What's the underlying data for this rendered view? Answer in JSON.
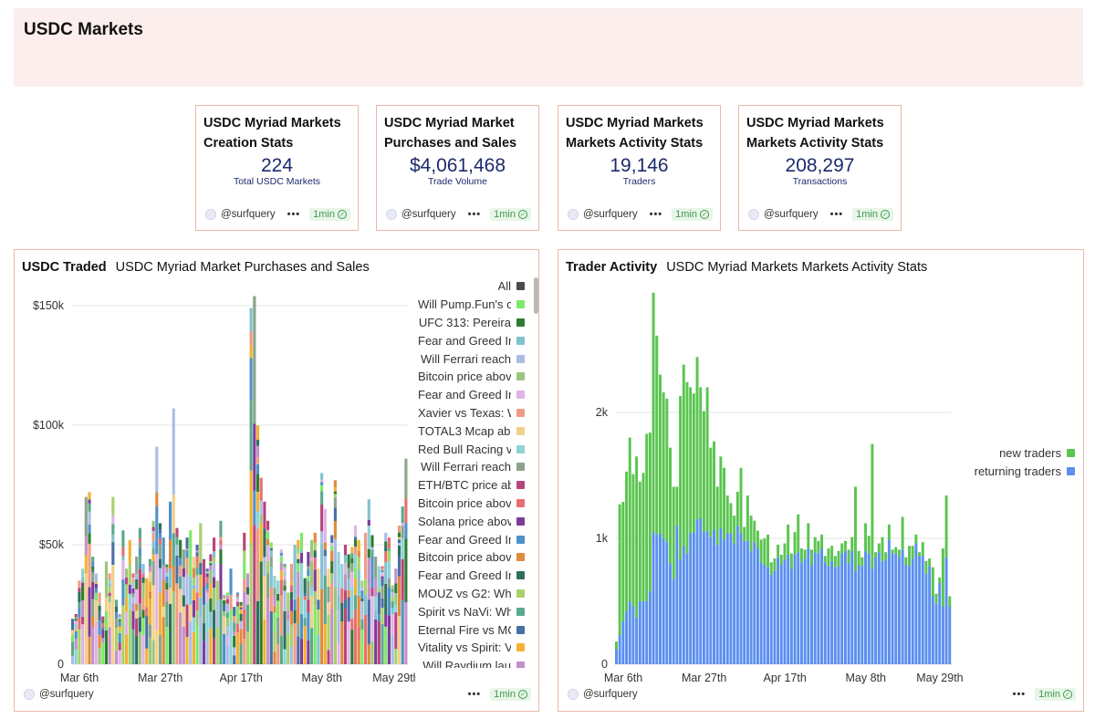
{
  "page": {
    "title": "USDC Markets"
  },
  "stat_cards": [
    {
      "title": "USDC Myriad Markets Creation Stats",
      "value": "224",
      "label": "Total USDC Markets",
      "author": "@surfquery",
      "refresh": "1min"
    },
    {
      "title": "USDC Myriad Market Purchases and Sales",
      "value": "$4,061,468",
      "label": "Trade Volume",
      "author": "@surfquery",
      "refresh": "1min"
    },
    {
      "title": "USDC Myriad Markets Markets Activity Stats",
      "value": "19,146",
      "label": "Traders",
      "author": "@surfquery",
      "refresh": "1min"
    },
    {
      "title": "USDC Myriad Markets Markets Activity Stats",
      "value": "208,297",
      "label": "Transactions",
      "author": "@surfquery",
      "refresh": "1min"
    }
  ],
  "panels": {
    "traded": {
      "name": "USDC Traded",
      "subtitle": "USDC Myriad Market Purchases and Sales",
      "author": "@surfquery",
      "refresh": "1min"
    },
    "traders": {
      "name": "Trader Activity",
      "subtitle": "USDC Myriad Markets Markets Activity Stats",
      "author": "@surfquery",
      "refresh": "1min"
    }
  },
  "colors": {
    "accent_border": "#e9b8a8",
    "header_bg": "#fbeeed",
    "stat_value": "#1d2a6e",
    "new_traders": "#5ac54f",
    "returning_traders": "#5b8ff0",
    "badge_green": "#3f9a4a"
  },
  "icons": {
    "avatar": "avatar-icon",
    "more": "more-dots-icon",
    "check": "check-circle-icon"
  },
  "chart_data": [
    {
      "type": "bar",
      "stacked": true,
      "title": "USDC Traded",
      "subtitle": "USDC Myriad Market Purchases and Sales",
      "xlabel": "",
      "ylabel": "",
      "x_ticks": [
        "Mar 6th",
        "Mar 27th",
        "Apr 17th",
        "May 8th",
        "May 29th"
      ],
      "y_ticks": [
        "0",
        "$50k",
        "$100k",
        "$150k"
      ],
      "ylim": [
        0,
        155000
      ],
      "legend": [
        {
          "name": "All",
          "color": "#4a4a4a"
        },
        {
          "name": "Will Pump.Fun's c",
          "color": "#7ee86a"
        },
        {
          "name": "UFC 313: Pereira",
          "color": "#2e7d32"
        },
        {
          "name": "Fear and Greed In",
          "color": "#80c2cf"
        },
        {
          "name": "Will Ferrari reach",
          "color": "#a9bde6"
        },
        {
          "name": "Bitcoin price abov",
          "color": "#9bc67d"
        },
        {
          "name": "Fear and Greed In",
          "color": "#e1b3e6"
        },
        {
          "name": "Xavier vs Texas: W",
          "color": "#f09c85"
        },
        {
          "name": "TOTAL3 Mcap abo",
          "color": "#f2d08a"
        },
        {
          "name": "Red Bull Racing v",
          "color": "#8ed3d6"
        },
        {
          "name": "Will Ferrari reach",
          "color": "#8aa58a"
        },
        {
          "name": "ETH/BTC price ab",
          "color": "#b8457a"
        },
        {
          "name": "Bitcoin price abov",
          "color": "#e86f6f"
        },
        {
          "name": "Solana price abov",
          "color": "#7d3c98"
        },
        {
          "name": "Fear and Greed In",
          "color": "#4f92c9"
        },
        {
          "name": "Bitcoin price abov",
          "color": "#e08a3c"
        },
        {
          "name": "Fear and Greed In",
          "color": "#2f6f5c"
        },
        {
          "name": "MOUZ vs G2: Whe",
          "color": "#a8d26b"
        },
        {
          "name": "Spirit vs NaVi: Wh",
          "color": "#5aaa8c"
        },
        {
          "name": "Eternal Fire vs MC",
          "color": "#4a6fa5"
        },
        {
          "name": "Vitality vs Spirit: V",
          "color": "#f2b233"
        },
        {
          "name": "Will Raydium lau",
          "color": "#c291c9"
        }
      ],
      "totals": [
        19000,
        21000,
        35000,
        40000,
        70000,
        72000,
        45000,
        38000,
        30000,
        20000,
        43000,
        38000,
        70000,
        27000,
        21000,
        56000,
        40000,
        52000,
        38000,
        45000,
        57000,
        42000,
        36000,
        44000,
        60000,
        91000,
        59000,
        53000,
        42000,
        68000,
        107000,
        57000,
        52000,
        48000,
        53000,
        56000,
        45000,
        50000,
        59000,
        44000,
        40000,
        46000,
        53000,
        35000,
        60000,
        29000,
        30000,
        40000,
        24000,
        30000,
        26000,
        55000,
        38000,
        149000,
        154000,
        100000,
        78000,
        68000,
        60000,
        51000,
        37000,
        35000,
        48000,
        42000,
        30000,
        42000,
        50000,
        52000,
        55000,
        36000,
        47000,
        52000,
        55000,
        40000,
        80000,
        65000,
        40000,
        54000,
        77000,
        47000,
        42000,
        50000,
        46000,
        49000,
        58000,
        52000,
        35000,
        55000,
        69000,
        54000,
        45000,
        41000,
        41000,
        55000,
        53000,
        33000,
        40000,
        58000,
        66000,
        86000
      ]
    },
    {
      "type": "bar",
      "stacked": true,
      "title": "Trader Activity",
      "subtitle": "USDC Myriad Markets Markets Activity Stats",
      "xlabel": "",
      "ylabel": "",
      "x_ticks": [
        "Mar 6th",
        "Mar 27th",
        "Apr 17th",
        "May 8th",
        "May 29th"
      ],
      "y_ticks": [
        "0",
        "1k",
        "2k"
      ],
      "ylim": [
        0,
        2950
      ],
      "series": [
        {
          "name": "new traders",
          "color": "#5ac54f",
          "values": [
            60,
            1040,
            950,
            1110,
            1300,
            1050,
            1280,
            950,
            1020,
            1330,
            1260,
            1900,
            1580,
            1260,
            1160,
            1140,
            920,
            730,
            310,
            1300,
            1440,
            1360,
            1160,
            1100,
            1290,
            1040,
            960,
            1140,
            710,
            700,
            460,
            570,
            570,
            300,
            240,
            220,
            270,
            520,
            110,
            360,
            280,
            170,
            140,
            180,
            210,
            260,
            100,
            100,
            100,
            80,
            130,
            240,
            120,
            180,
            300,
            110,
            70,
            200,
            120,
            120,
            100,
            110,
            50,
            140,
            120,
            90,
            120,
            80,
            80,
            110,
            110,
            670,
            110,
            70,
            220,
            140,
            990,
            40,
            70,
            190,
            60,
            120,
            30,
            50,
            60,
            260,
            60,
            160,
            100,
            70,
            30,
            110,
            100,
            60,
            230,
            80,
            40,
            460,
            490,
            80
          ]
        },
        {
          "name": "returning traders",
          "color": "#5b8ff0",
          "values": [
            120,
            230,
            340,
            420,
            500,
            460,
            370,
            500,
            500,
            500,
            580,
            1050,
            1030,
            1040,
            1000,
            970,
            800,
            680,
            1100,
            830,
            940,
            880,
            1040,
            1050,
            1150,
            1160,
            1050,
            1060,
            1010,
            1070,
            950,
            1080,
            990,
            1040,
            1040,
            960,
            1100,
            1040,
            980,
            980,
            900,
            970,
            920,
            810,
            790,
            770,
            710,
            740,
            850,
            790,
            830,
            870,
            760,
            870,
            890,
            810,
            840,
            920,
            790,
            890,
            880,
            920,
            810,
            780,
            820,
            770,
            780,
            880,
            900,
            800,
            900,
            740,
            790,
            780,
            900,
            880,
            760,
            850,
            890,
            820,
            830,
            990,
            880,
            880,
            850,
            910,
            790,
            780,
            840,
            960,
            860,
            860,
            720,
            780,
            540,
            480,
            650,
            460,
            850,
            460
          ]
        }
      ]
    }
  ]
}
